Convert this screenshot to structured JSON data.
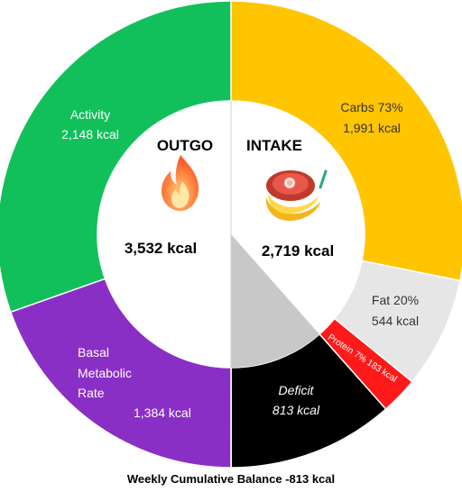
{
  "chart_data": {
    "type": "pie",
    "style": "double-donut",
    "caption": "Weekly Cumulative Balance -813 kcal",
    "outgo": {
      "header": "OUTGO",
      "total_label": "3,532 kcal",
      "total": 3532,
      "icon": "fire-icon",
      "slices": [
        {
          "name": "Activity",
          "value": 2148,
          "value_label": "2,148 kcal",
          "color": "#12c05b"
        },
        {
          "name": "Basal Metabolic Rate",
          "lines": [
            "Basal",
            "Metabolic",
            "Rate"
          ],
          "value": 1384,
          "value_label": "1,384 kcal",
          "color": "#8a2fc6"
        }
      ]
    },
    "intake": {
      "header": "INTAKE",
      "total_label": "2,719 kcal",
      "total": 2719,
      "icon": "food-icon",
      "slices": [
        {
          "name": "Carbs 73%",
          "value": 1991,
          "value_label": "1,991 kcal",
          "color": "#ffc500"
        },
        {
          "name": "Fat 20%",
          "value": 544,
          "value_label": "544 kcal",
          "color": "#e6e6e6"
        },
        {
          "name": "Protein 7%",
          "value": 183,
          "value_label": "183 kcal",
          "rotated_label": "Protein 7% 183 kcal",
          "color": "#ff1a1a"
        }
      ],
      "deficit": {
        "name": "Deficit",
        "value": 813,
        "value_label": "813 kcal",
        "color": "#000000",
        "inner_color": "#c8c8c8"
      }
    }
  }
}
